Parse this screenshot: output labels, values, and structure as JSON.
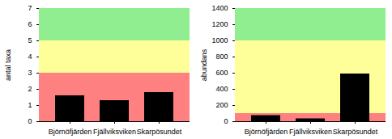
{
  "chart_data": [
    {
      "type": "bar",
      "ylabel": "antal taxa",
      "categories": [
        "Björnöfjärden",
        "Fjällviksviken",
        "Skarpösundet"
      ],
      "values": [
        1.6,
        1.3,
        1.8
      ],
      "color": "#000000",
      "ylim": [
        0,
        7
      ],
      "yticks": [
        0,
        1,
        2,
        3,
        4,
        5,
        6,
        7
      ],
      "bands": [
        {
          "ymin": 0,
          "ymax": 3,
          "color": "#FF8080"
        },
        {
          "ymin": 3,
          "ymax": 5,
          "color": "#FFFF99"
        },
        {
          "ymin": 5,
          "ymax": 7,
          "color": "#90EE90"
        }
      ]
    },
    {
      "type": "bar",
      "ylabel": "abundans",
      "categories": [
        "Björnöfjärden",
        "Fjällviksviken",
        "Skarpösundet"
      ],
      "values": [
        75,
        35,
        590
      ],
      "color": "#000000",
      "ylim": [
        0,
        1400
      ],
      "yticks": [
        0,
        200,
        400,
        600,
        800,
        1000,
        1200,
        1400
      ],
      "bands": [
        {
          "ymin": 0,
          "ymax": 100,
          "color": "#FF8080"
        },
        {
          "ymin": 100,
          "ymax": 1000,
          "color": "#FFFF99"
        },
        {
          "ymin": 1000,
          "ymax": 1400,
          "color": "#90EE90"
        }
      ]
    }
  ]
}
